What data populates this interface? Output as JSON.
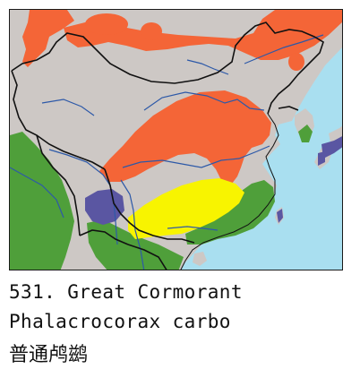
{
  "caption": {
    "number": "531.",
    "common_name": "Great Cormorant",
    "scientific_name": "Phalacrocorax carbo",
    "chinese_name": "普通鸬鹚"
  },
  "map": {
    "colors": {
      "sea": "#a9dff0",
      "land": "#cdc8c5",
      "orange_range": "#f46537",
      "yellow_range": "#f8f400",
      "green_range": "#4f9f3a",
      "purple_range": "#5a56a2",
      "rivers": "#2d59a8",
      "borders": "#111111"
    }
  }
}
